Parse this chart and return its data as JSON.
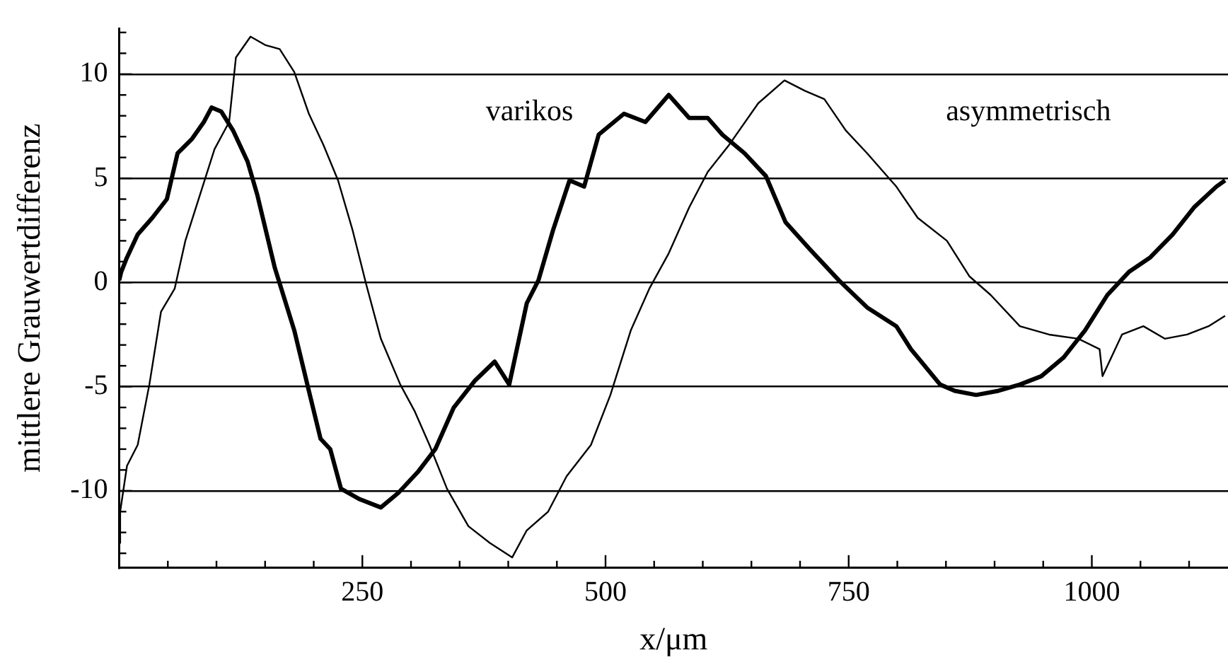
{
  "chart_data": {
    "type": "line",
    "xlabel": "x/μm",
    "ylabel": "mittlere Grauwertdifferenz",
    "xlim": [
      0,
      1140
    ],
    "ylim": [
      -13.7,
      12.2
    ],
    "xticks": [
      {
        "value": 50,
        "label": null
      },
      {
        "value": 100,
        "label": null
      },
      {
        "value": 150,
        "label": null
      },
      {
        "value": 200,
        "label": null
      },
      250,
      {
        "value": 300,
        "label": null
      },
      {
        "value": 350,
        "label": null
      },
      {
        "value": 400,
        "label": null
      },
      {
        "value": 450,
        "label": null
      },
      500,
      {
        "value": 550,
        "label": null
      },
      {
        "value": 600,
        "label": null
      },
      {
        "value": 650,
        "label": null
      },
      {
        "value": 700,
        "label": null
      },
      750,
      {
        "value": 800,
        "label": null
      },
      {
        "value": 850,
        "label": null
      },
      {
        "value": 900,
        "label": null
      },
      {
        "value": 950,
        "label": null
      },
      1000,
      {
        "value": 1050,
        "label": null
      },
      {
        "value": 1100,
        "label": null
      }
    ],
    "yticks": [
      {
        "value": -13,
        "label": null
      },
      {
        "value": -12,
        "label": null
      },
      {
        "value": -11,
        "label": null
      },
      -10,
      {
        "value": -9,
        "label": null
      },
      {
        "value": -8,
        "label": null
      },
      {
        "value": -7,
        "label": null
      },
      {
        "value": -6,
        "label": null
      },
      -5,
      {
        "value": -4,
        "label": null
      },
      {
        "value": -3,
        "label": null
      },
      {
        "value": -2,
        "label": null
      },
      {
        "value": -1,
        "label": null
      },
      0,
      {
        "value": 1,
        "label": null
      },
      {
        "value": 2,
        "label": null
      },
      {
        "value": 3,
        "label": null
      },
      {
        "value": 4,
        "label": null
      },
      5,
      {
        "value": 6,
        "label": null
      },
      {
        "value": 7,
        "label": null
      },
      {
        "value": 8,
        "label": null
      },
      {
        "value": 9,
        "label": null
      },
      10,
      {
        "value": 11,
        "label": null
      },
      {
        "value": 12,
        "label": null
      }
    ],
    "grid": "y",
    "legend": false,
    "marker": "none",
    "line_style": "solid",
    "series": [
      {
        "name": "varikos",
        "color": "#000000",
        "x": [
          0,
          2,
          8,
          19,
          34,
          49,
          60,
          75,
          87,
          95,
          105,
          117,
          132,
          142,
          160,
          180,
          195,
          207,
          217,
          228,
          247,
          269,
          287,
          307,
          325,
          344,
          366,
          386,
          401,
          419,
          431,
          446,
          463,
          478,
          493,
          519,
          541,
          565,
          586,
          605,
          620,
          643,
          665,
          685,
          710,
          740,
          769,
          799,
          814,
          844,
          859,
          881,
          904,
          926,
          948,
          971,
          993,
          1016,
          1038,
          1060,
          1083,
          1105,
          1128,
          1137
        ],
        "values": [
          0.1,
          0.5,
          1.2,
          2.3,
          3.1,
          4.0,
          6.2,
          6.9,
          7.7,
          8.4,
          8.2,
          7.3,
          5.8,
          4.2,
          0.7,
          -2.3,
          -5.2,
          -7.5,
          -8.0,
          -9.9,
          -10.4,
          -10.8,
          -10.1,
          -9.1,
          -8.0,
          -6.0,
          -4.7,
          -3.8,
          -4.9,
          -1.0,
          0.1,
          2.5,
          4.9,
          4.6,
          7.1,
          8.1,
          7.7,
          9.0,
          7.9,
          7.9,
          7.1,
          6.2,
          5.1,
          2.9,
          1.6,
          0.1,
          -1.2,
          -2.1,
          -3.2,
          -4.9,
          -5.2,
          -5.4,
          -5.2,
          -4.9,
          -4.5,
          -3.6,
          -2.3,
          -0.6,
          0.5,
          1.2,
          2.3,
          3.6,
          4.6,
          4.9
        ]
      },
      {
        "name": "asymmetrisch",
        "color": "#000000",
        "x": [
          0,
          1,
          8,
          19,
          31,
          43,
          57,
          68,
          83,
          98,
          113,
          120,
          135,
          150,
          165,
          180,
          195,
          210,
          225,
          240,
          254,
          269,
          289,
          304,
          319,
          337,
          359,
          381,
          404,
          419,
          441,
          460,
          485,
          505,
          526,
          545,
          565,
          586,
          605,
          627,
          657,
          684,
          705,
          725,
          747,
          769,
          799,
          821,
          851,
          874,
          896,
          926,
          956,
          986,
          1008,
          1011,
          1031,
          1053,
          1075,
          1098,
          1120,
          1137
        ],
        "values": [
          -12.5,
          -11.0,
          -8.8,
          -7.8,
          -4.9,
          -1.4,
          -0.3,
          2.0,
          4.2,
          6.4,
          7.7,
          10.8,
          11.8,
          11.4,
          11.2,
          10.1,
          8.1,
          6.6,
          4.9,
          2.5,
          -0.1,
          -2.7,
          -4.9,
          -6.2,
          -7.8,
          -9.9,
          -11.7,
          -12.5,
          -13.2,
          -11.9,
          -11.0,
          -9.3,
          -7.8,
          -5.4,
          -2.3,
          -0.3,
          1.4,
          3.6,
          5.3,
          6.6,
          8.6,
          9.7,
          9.2,
          8.8,
          7.3,
          6.2,
          4.6,
          3.1,
          2.0,
          0.3,
          -0.6,
          -2.1,
          -2.5,
          -2.7,
          -3.2,
          -4.5,
          -2.5,
          -2.1,
          -2.7,
          -2.5,
          -2.1,
          -1.6
        ]
      }
    ]
  }
}
